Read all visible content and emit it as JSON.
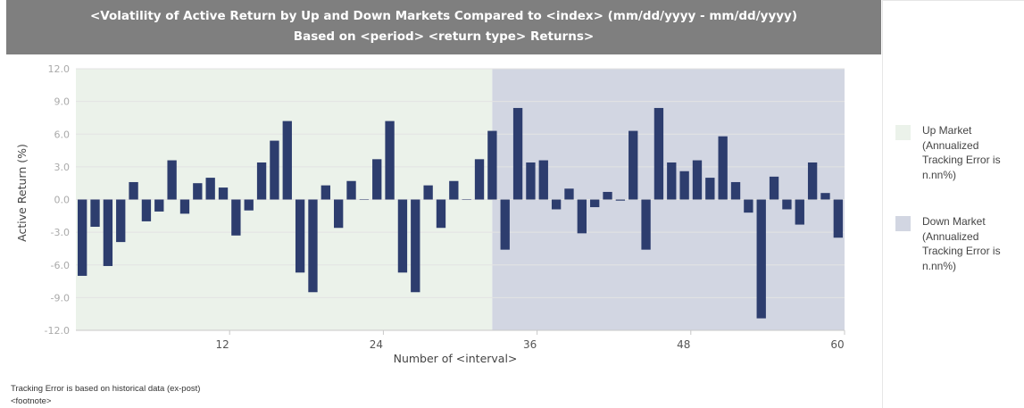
{
  "title": {
    "line1": "<Volatility of Active Return by Up and Down Markets Compared to <index> (mm/dd/yyyy - mm/dd/yyyy)",
    "line2": "Based on <period> <return type> Returns>"
  },
  "legend": [
    {
      "label": "Up Market (Annualized Tracking Error is n.nn%)",
      "color": "#ebf2ea"
    },
    {
      "label": "Down Market (Annualized Tracking Error is n.nn%)",
      "color": "#d2d6e2"
    }
  ],
  "footnotes": [
    "Tracking Error is based on historical data (ex-post)",
    "<footnote>"
  ],
  "colors": {
    "bar": "#2d3d6e",
    "up_bg": "#ebf2ea",
    "down_bg": "#d2d6e2",
    "grid": "#e3e3e3",
    "axis_text": "#aaaaaa"
  },
  "chart_data": {
    "type": "bar",
    "xlabel": "Number of <interval>",
    "ylabel": "Active Return (%)",
    "ylim": [
      -12.0,
      12.0
    ],
    "yticks": [
      "-12.0",
      "-9.0",
      "-6.0",
      "-3.0",
      "0.0",
      "3.0",
      "6.0",
      "9.0",
      "12.0"
    ],
    "xlim": [
      0,
      60
    ],
    "xticks": [
      "12",
      "24",
      "36",
      "48",
      "60"
    ],
    "regions": [
      {
        "name": "Up Market",
        "x_range": [
          0,
          32.5
        ]
      },
      {
        "name": "Down Market",
        "x_range": [
          32.5,
          60
        ]
      }
    ],
    "x": [
      1,
      2,
      3,
      4,
      5,
      6,
      7,
      8,
      9,
      10,
      11,
      12,
      13,
      14,
      15,
      16,
      17,
      18,
      19,
      20,
      21,
      22,
      23,
      24,
      25,
      26,
      27,
      28,
      29,
      30,
      31,
      32,
      33,
      34,
      35,
      36,
      37,
      38,
      39,
      40,
      41,
      42,
      43,
      44,
      45,
      46,
      47,
      48,
      49,
      50,
      51,
      52,
      53,
      54,
      55,
      56,
      57,
      58,
      59,
      60
    ],
    "values": [
      -7.0,
      -2.5,
      -6.1,
      -3.9,
      1.6,
      -2.0,
      -1.1,
      3.6,
      -1.3,
      1.5,
      2.0,
      1.1,
      -3.3,
      -1.0,
      3.4,
      5.4,
      7.2,
      -6.7,
      -8.5,
      1.3,
      -2.6,
      1.7,
      0.0,
      3.7,
      7.2,
      -6.7,
      -8.5,
      1.3,
      -2.6,
      1.7,
      0.0,
      3.7,
      6.3,
      -4.6,
      8.4,
      3.4,
      3.6,
      -0.9,
      1.0,
      -3.1,
      -0.7,
      0.7,
      -0.1,
      6.3,
      -4.6,
      8.4,
      3.4,
      2.6,
      3.6,
      2.0,
      5.8,
      1.6,
      -1.2,
      -10.9,
      2.1,
      -0.9,
      -2.3,
      3.4,
      0.6,
      -3.5
    ]
  }
}
